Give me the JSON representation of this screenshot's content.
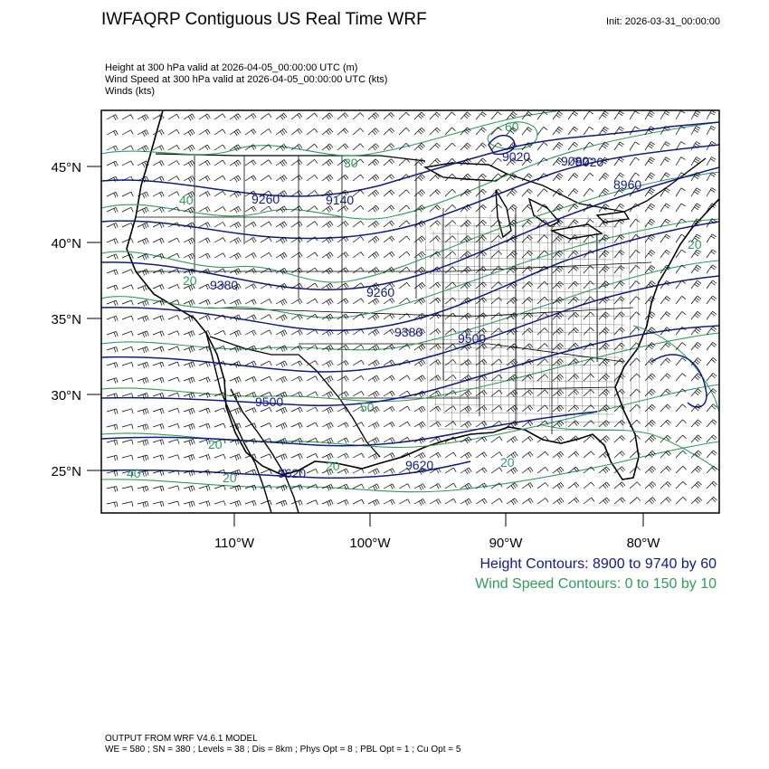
{
  "header": {
    "title": "IWFAQRP Contiguous US Real Time WRF",
    "init": "Init: 2026-03-31_00:00:00"
  },
  "fields": [
    "Height at 300 hPa valid at 2026-04-05_00:00:00 UTC   (m)",
    "Wind Speed at 300 hPa valid at 2026-04-05_00:00:00 UTC   (kts)",
    "Winds   (kts)"
  ],
  "axes": {
    "lat_labels": [
      "45°N",
      "40°N",
      "35°N",
      "30°N",
      "25°N"
    ],
    "lon_labels": [
      "110°W",
      "100°W",
      "90°W",
      "80°W"
    ]
  },
  "contour_labels": {
    "height": [
      "9260",
      "9140",
      "9380",
      "9260",
      "9380",
      "9500",
      "9500",
      "9620",
      "9620",
      "9020",
      "9080",
      "9020",
      "8960"
    ],
    "speed": [
      "40",
      "20",
      "20",
      "50",
      "20",
      "20",
      "20",
      "40",
      "60",
      "30",
      "20"
    ]
  },
  "legend": {
    "height": "Height Contours: 8900 to 9740 by 60",
    "speed": "Wind Speed Contours: 0 to 150 by 10"
  },
  "footer": {
    "line1": "OUTPUT FROM WRF V4.6.1 MODEL",
    "line2": "WE = 580 ; SN = 380 ; Levels = 38 ; Dis = 8km ; Phys Opt = 8 ; PBL Opt = 1 ; Cu Opt = 5"
  },
  "colors": {
    "height_contour": "#101a8a",
    "speed_contour": "#2e9c5a",
    "barb": "#000000"
  }
}
